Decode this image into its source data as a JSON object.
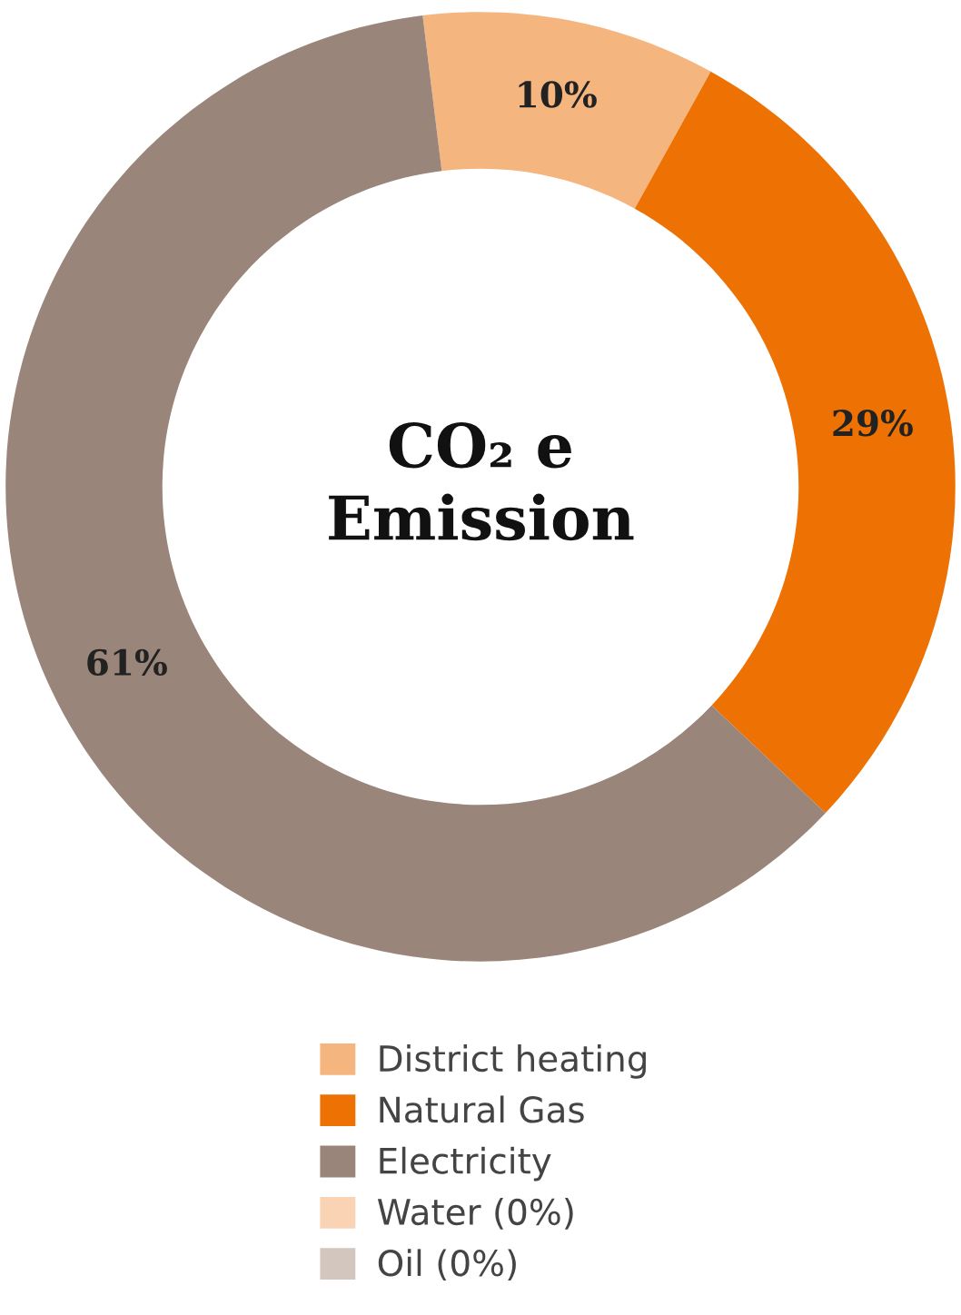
{
  "chart_data": {
    "type": "donut",
    "title": "CO₂ e\nEmission",
    "categories": [
      "District heating",
      "Natural Gas",
      "Electricity",
      "Water (0%)",
      "Oil (0%)"
    ],
    "values": [
      10,
      29,
      61,
      0,
      0
    ],
    "colors": [
      "#f5b57f",
      "#ee7203",
      "#9a857a",
      "#f9d3b4",
      "#d3c6bf"
    ],
    "value_labels": [
      "10%",
      "29%",
      "61%",
      null,
      null
    ],
    "legend": "bottom"
  }
}
